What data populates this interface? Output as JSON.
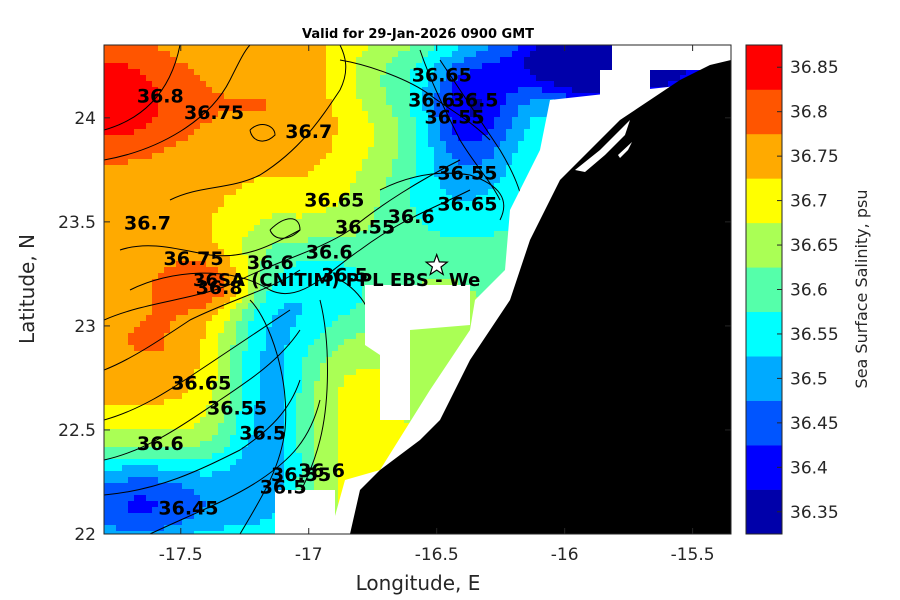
{
  "chart_data": {
    "type": "heatmap",
    "title": "Valid for 29-Jan-2026 0900 GMT",
    "xlabel": "Longitude, E",
    "ylabel": "Latitude, N",
    "xlim": [
      -17.8,
      -15.35
    ],
    "ylim": [
      22.0,
      24.35
    ],
    "x_ticks": [
      -17.5,
      -17,
      -16.5,
      -16,
      -15.5
    ],
    "x_tick_labels": [
      "-17.5",
      "-17",
      "-16.5",
      "-16",
      "-15.5"
    ],
    "y_ticks": [
      22,
      22.5,
      23,
      23.5,
      24
    ],
    "y_tick_labels": [
      "22",
      "22.5",
      "23",
      "23.5",
      "24"
    ],
    "colorbar": {
      "label": "Sea Surface Salinity, psu",
      "levels": [
        36.35,
        36.4,
        36.45,
        36.5,
        36.55,
        36.6,
        36.65,
        36.7,
        36.75,
        36.8,
        36.85
      ],
      "tick_labels": [
        "36.35",
        "36.4",
        "36.45",
        "36.5",
        "36.55",
        "36.6",
        "36.65",
        "36.7",
        "36.75",
        "36.8",
        "36.85"
      ],
      "colors": [
        "#0000aa",
        "#0000ff",
        "#0055ff",
        "#00aaff",
        "#00ffff",
        "#55ffaa",
        "#aaff55",
        "#ffff00",
        "#ffaa00",
        "#ff5500",
        "#ff0000"
      ]
    },
    "contour_labels": [
      {
        "text": "36.8",
        "lon": -17.58,
        "lat": 24.1
      },
      {
        "text": "36.75",
        "lon": -17.37,
        "lat": 24.02
      },
      {
        "text": "36.7",
        "lon": -17.0,
        "lat": 23.93
      },
      {
        "text": "36.65",
        "lon": -16.48,
        "lat": 24.2
      },
      {
        "text": "36.6",
        "lon": -16.52,
        "lat": 24.08
      },
      {
        "text": "36.55",
        "lon": -16.43,
        "lat": 24.0
      },
      {
        "text": "36.5",
        "lon": -16.35,
        "lat": 24.08
      },
      {
        "text": "36.55",
        "lon": -16.38,
        "lat": 23.73
      },
      {
        "text": "36.6",
        "lon": -16.6,
        "lat": 23.52
      },
      {
        "text": "36.65",
        "lon": -16.38,
        "lat": 23.58
      },
      {
        "text": "36.65",
        "lon": -16.9,
        "lat": 23.6
      },
      {
        "text": "36.55",
        "lon": -16.78,
        "lat": 23.47
      },
      {
        "text": "36.6",
        "lon": -16.92,
        "lat": 23.35
      },
      {
        "text": "36.5",
        "lon": -16.86,
        "lat": 23.24
      },
      {
        "text": "36.6",
        "lon": -17.15,
        "lat": 23.3
      },
      {
        "text": "36.7",
        "lon": -17.63,
        "lat": 23.49
      },
      {
        "text": "36.75",
        "lon": -17.45,
        "lat": 23.32
      },
      {
        "text": "36.8",
        "lon": -17.35,
        "lat": 23.18
      },
      {
        "text": "36.65",
        "lon": -17.42,
        "lat": 22.72
      },
      {
        "text": "36.55",
        "lon": -17.28,
        "lat": 22.6
      },
      {
        "text": "36.5",
        "lon": -17.18,
        "lat": 22.48
      },
      {
        "text": "36.6",
        "lon": -17.58,
        "lat": 22.43
      },
      {
        "text": "36.55",
        "lon": -17.03,
        "lat": 22.28
      },
      {
        "text": "36.5",
        "lon": -17.1,
        "lat": 22.22
      },
      {
        "text": "36.6",
        "lon": -16.95,
        "lat": 22.3
      },
      {
        "text": "36.45",
        "lon": -17.47,
        "lat": 22.12
      }
    ],
    "station": {
      "label": "36SA (CNITIM) PPL EBS  - We",
      "marker": "star",
      "lon": -16.5,
      "lat": 23.29
    },
    "land_color": "#000000",
    "nodata_color": "#ffffff"
  }
}
